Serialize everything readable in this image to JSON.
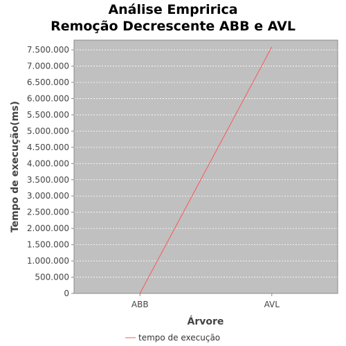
{
  "chart_data": {
    "type": "line",
    "title": "Análise Empririca",
    "subtitle": "Remoção Decrescente ABB e AVL",
    "xlabel": "Árvore",
    "ylabel": "Tempo de execução(ms)",
    "categories": [
      "ABB",
      "AVL"
    ],
    "series": [
      {
        "name": "tempo de execução",
        "color": "#ff5555",
        "values": [
          2000,
          7590000
        ]
      }
    ],
    "ylim": [
      0,
      7800000
    ],
    "yticks": [
      0,
      500000,
      1000000,
      1500000,
      2000000,
      2500000,
      3000000,
      3500000,
      4000000,
      4500000,
      5000000,
      5500000,
      6000000,
      6500000,
      7000000,
      7500000
    ],
    "ytick_labels": [
      "0",
      "500.000",
      "1.000.000",
      "1.500.000",
      "2.000.000",
      "2.500.000",
      "3.000.000",
      "3.500.000",
      "4.000.000",
      "4.500.000",
      "5.000.000",
      "5.500.000",
      "6.000.000",
      "6.500.000",
      "7.000.000",
      "7.500.000"
    ],
    "grid": true,
    "legend_position": "bottom",
    "plot_background": "#c0c0c0",
    "grid_color": "#ffffff"
  }
}
